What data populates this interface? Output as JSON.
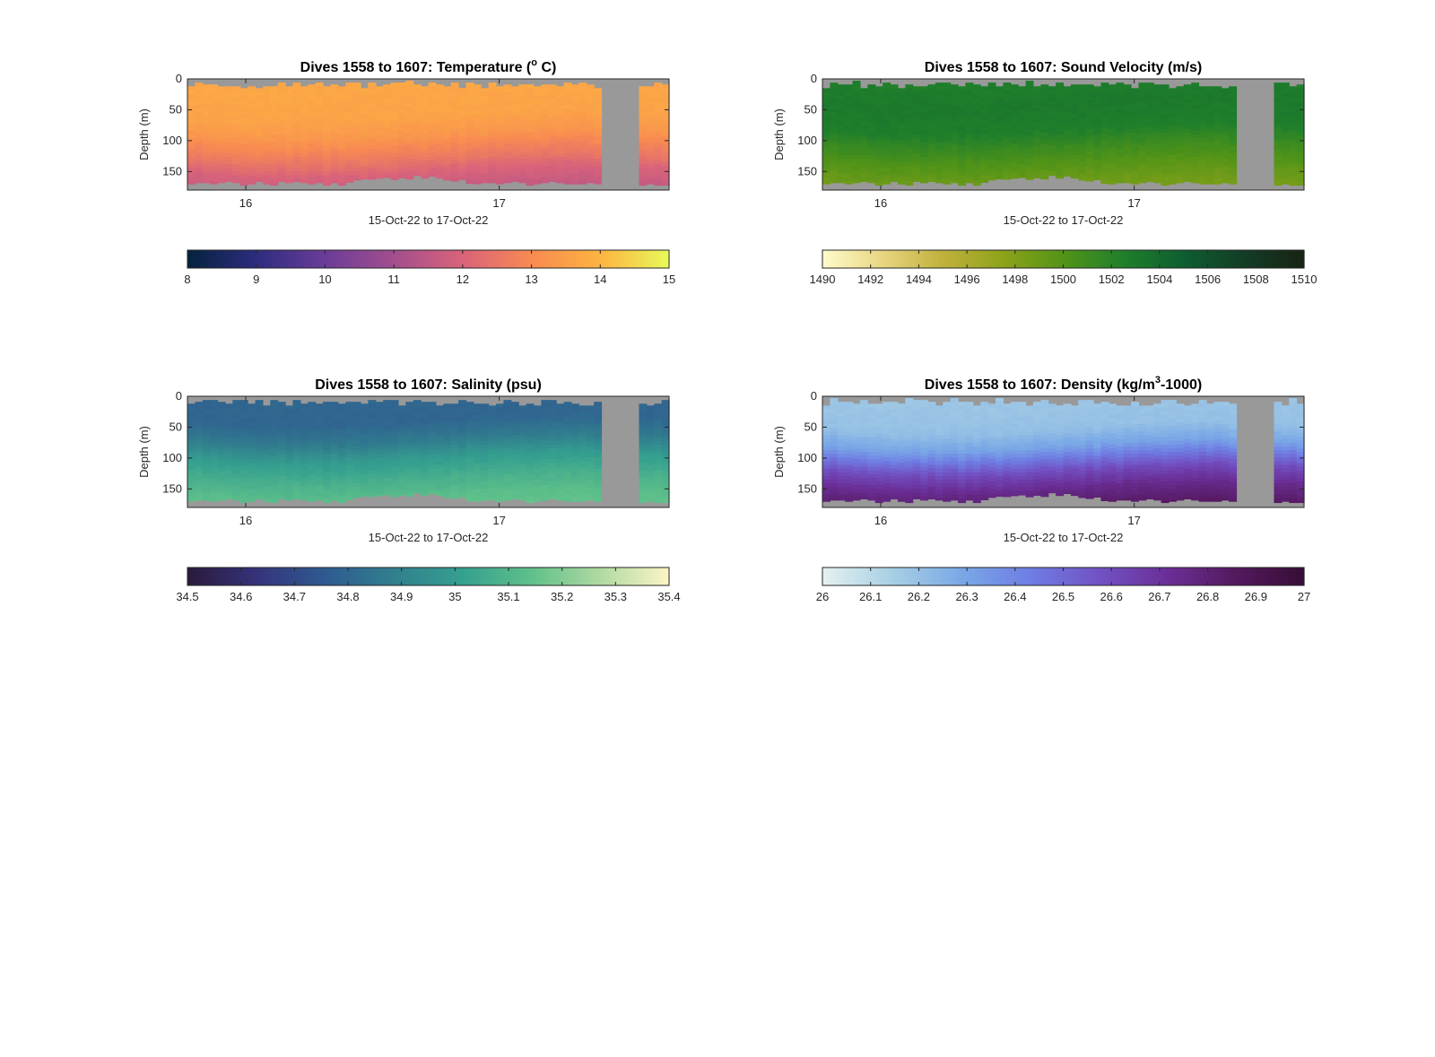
{
  "chart_data": [
    {
      "type": "heatmap",
      "title": "Dives 1558 to 1607: Temperature (",
      "title_sup": "o",
      "title_tail": " C)",
      "xlabel": "15-Oct-22 to 17-Oct-22",
      "ylabel": "Depth (m)",
      "x_ticks": [
        "16",
        "17"
      ],
      "x_tick_positions_days": [
        16.0,
        17.0
      ],
      "xlim_days": [
        15.77,
        17.67
      ],
      "y_ticks": [
        0,
        50,
        100,
        150
      ],
      "ylim": [
        0,
        180
      ],
      "y_reversed": true,
      "gap_days": [
        17.41,
        17.56
      ],
      "colormap_name": "thermal",
      "colormap": [
        "#04233e",
        "#2d2c7e",
        "#6a3d98",
        "#a34e8e",
        "#d9637a",
        "#f88a52",
        "#fdb441",
        "#e7fa5a"
      ],
      "clim": [
        8,
        15
      ],
      "colorbar_ticks": [
        "8",
        "9",
        "10",
        "11",
        "12",
        "13",
        "14",
        "15"
      ],
      "profile": {
        "depths": [
          0,
          60,
          90,
          110,
          130,
          150,
          180
        ],
        "values": [
          13.7,
          13.6,
          13.3,
          12.9,
          12.5,
          12.0,
          11.6
        ]
      },
      "missing_color": "#999999"
    },
    {
      "type": "heatmap",
      "title": "Dives 1558 to 1607: Sound Velocity (m/s)",
      "xlabel": "15-Oct-22 to 17-Oct-22",
      "ylabel": "Depth (m)",
      "x_ticks": [
        "16",
        "17"
      ],
      "x_tick_positions_days": [
        16.0,
        17.0
      ],
      "xlim_days": [
        15.77,
        17.67
      ],
      "y_ticks": [
        0,
        50,
        100,
        150
      ],
      "ylim": [
        0,
        180
      ],
      "y_reversed": true,
      "gap_days": [
        17.41,
        17.56
      ],
      "colormap_name": "speed",
      "colormap": [
        "#fefccc",
        "#e8d680",
        "#c0b13c",
        "#8da21a",
        "#529418",
        "#1f7f2b",
        "#0e5e30",
        "#133d26",
        "#172313"
      ],
      "clim": [
        1490,
        1510
      ],
      "colorbar_ticks": [
        "1490",
        "1492",
        "1494",
        "1496",
        "1498",
        "1500",
        "1502",
        "1504",
        "1506",
        "1508",
        "1510"
      ],
      "profile": {
        "depths": [
          0,
          40,
          80,
          100,
          130,
          160,
          180
        ],
        "values": [
          1502.6,
          1502.9,
          1502.6,
          1501.6,
          1500.2,
          1499.0,
          1498.5
        ]
      },
      "missing_color": "#999999"
    },
    {
      "type": "heatmap",
      "title": "Dives 1558 to 1607: Salinity (psu)",
      "xlabel": "15-Oct-22 to 17-Oct-22",
      "ylabel": "Depth (m)",
      "x_ticks": [
        "16",
        "17"
      ],
      "x_tick_positions_days": [
        16.0,
        17.0
      ],
      "xlim_days": [
        15.77,
        17.67
      ],
      "y_ticks": [
        0,
        50,
        100,
        150
      ],
      "ylim": [
        0,
        180
      ],
      "y_reversed": true,
      "gap_days": [
        17.41,
        17.56
      ],
      "colormap_name": "haline",
      "colormap": [
        "#2a1a3b",
        "#35337a",
        "#2f5a91",
        "#317f8e",
        "#35a08f",
        "#5fc08a",
        "#b1d9a2",
        "#fdf5c6"
      ],
      "clim": [
        34.5,
        35.4
      ],
      "colorbar_ticks": [
        "34.5",
        "34.6",
        "34.7",
        "34.8",
        "34.9",
        "35",
        "35.1",
        "35.2",
        "35.3",
        "35.4"
      ],
      "profile": {
        "depths": [
          0,
          40,
          70,
          100,
          130,
          160,
          180
        ],
        "values": [
          34.8,
          34.8,
          34.87,
          35.0,
          35.07,
          35.13,
          35.15
        ]
      },
      "missing_color": "#999999"
    },
    {
      "type": "heatmap",
      "title": "Dives 1558 to 1607: Density (kg/m",
      "title_sup": "3",
      "title_tail": "-1000)",
      "xlabel": "15-Oct-22 to 17-Oct-22",
      "ylabel": "Depth (m)",
      "x_ticks": [
        "16",
        "17"
      ],
      "x_tick_positions_days": [
        16.0,
        17.0
      ],
      "xlim_days": [
        15.77,
        17.67
      ],
      "y_ticks": [
        0,
        50,
        100,
        150
      ],
      "ylim": [
        0,
        180
      ],
      "y_reversed": true,
      "gap_days": [
        17.41,
        17.56
      ],
      "colormap_name": "dense",
      "colormap": [
        "#e6f1f1",
        "#a8d0e4",
        "#7aa9e6",
        "#6f7ee4",
        "#7253c5",
        "#6b2f98",
        "#55195f",
        "#360e36"
      ],
      "clim": [
        26,
        27
      ],
      "colorbar_ticks": [
        "26",
        "26.1",
        "26.2",
        "26.3",
        "26.4",
        "26.5",
        "26.6",
        "26.7",
        "26.8",
        "26.9",
        "27"
      ],
      "profile": {
        "depths": [
          0,
          50,
          80,
          100,
          120,
          150,
          180
        ],
        "values": [
          26.18,
          26.2,
          26.3,
          26.45,
          26.6,
          26.75,
          26.85
        ]
      },
      "missing_color": "#999999"
    }
  ]
}
